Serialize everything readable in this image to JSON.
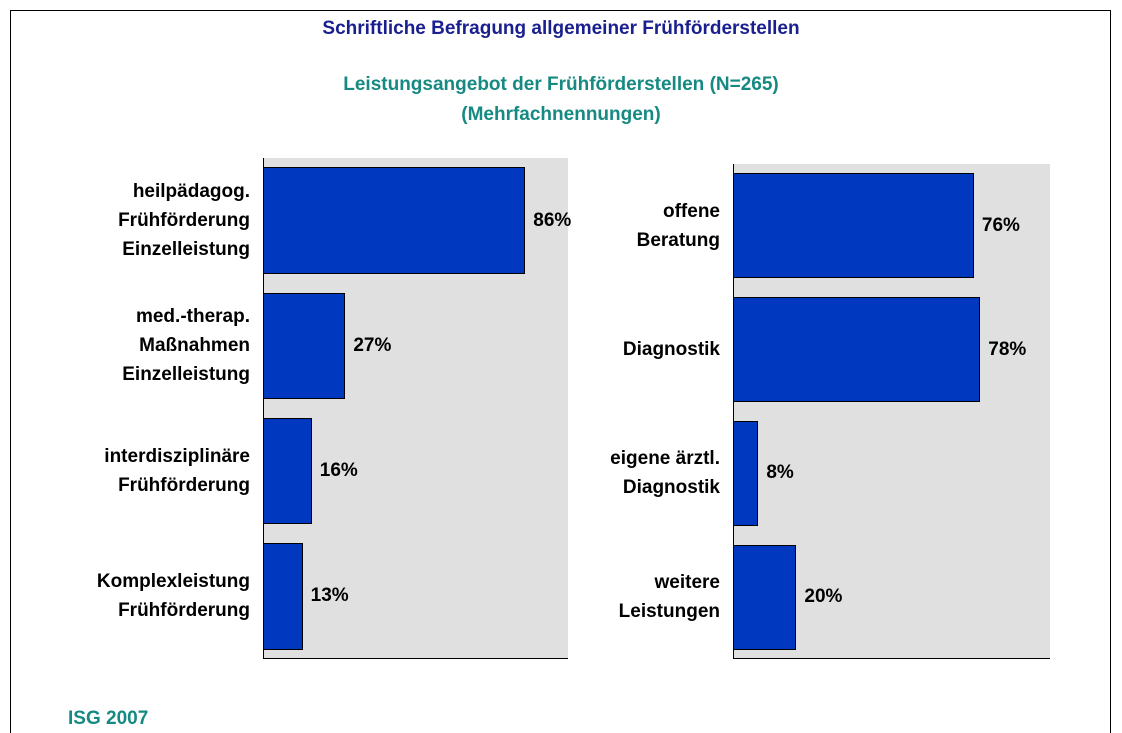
{
  "header": {
    "title": "Schriftliche Befragung allgemeiner Frühförderstellen",
    "subtitle": "Leistungsangebot der Frühförderstellen (N=265)\n(Mehrfachnennungen)"
  },
  "chart_data": [
    {
      "type": "bar",
      "orientation": "horizontal",
      "color": "#0038c0",
      "categories": [
        "heilpädagog.\nFrühförderung\nEinzelleistung",
        "med.-therap.\nMaßnahmen\nEinzelleistung",
        "interdisziplinäre\nFrühförderung",
        "Komplexleistung\nFrühförderung"
      ],
      "values": [
        86,
        27,
        16,
        13
      ],
      "value_labels": [
        "86%",
        "27%",
        "16%",
        "13%"
      ],
      "xlim": [
        0,
        100
      ]
    },
    {
      "type": "bar",
      "orientation": "horizontal",
      "color": "#0038c0",
      "categories": [
        "offene\nBeratung",
        "Diagnostik",
        "eigene ärztl.\nDiagnostik",
        "weitere\nLeistungen"
      ],
      "values": [
        76,
        78,
        8,
        20
      ],
      "value_labels": [
        "76%",
        "78%",
        "8%",
        "20%"
      ],
      "xlim": [
        0,
        100
      ]
    }
  ],
  "footer": {
    "source": "ISG 2007"
  }
}
